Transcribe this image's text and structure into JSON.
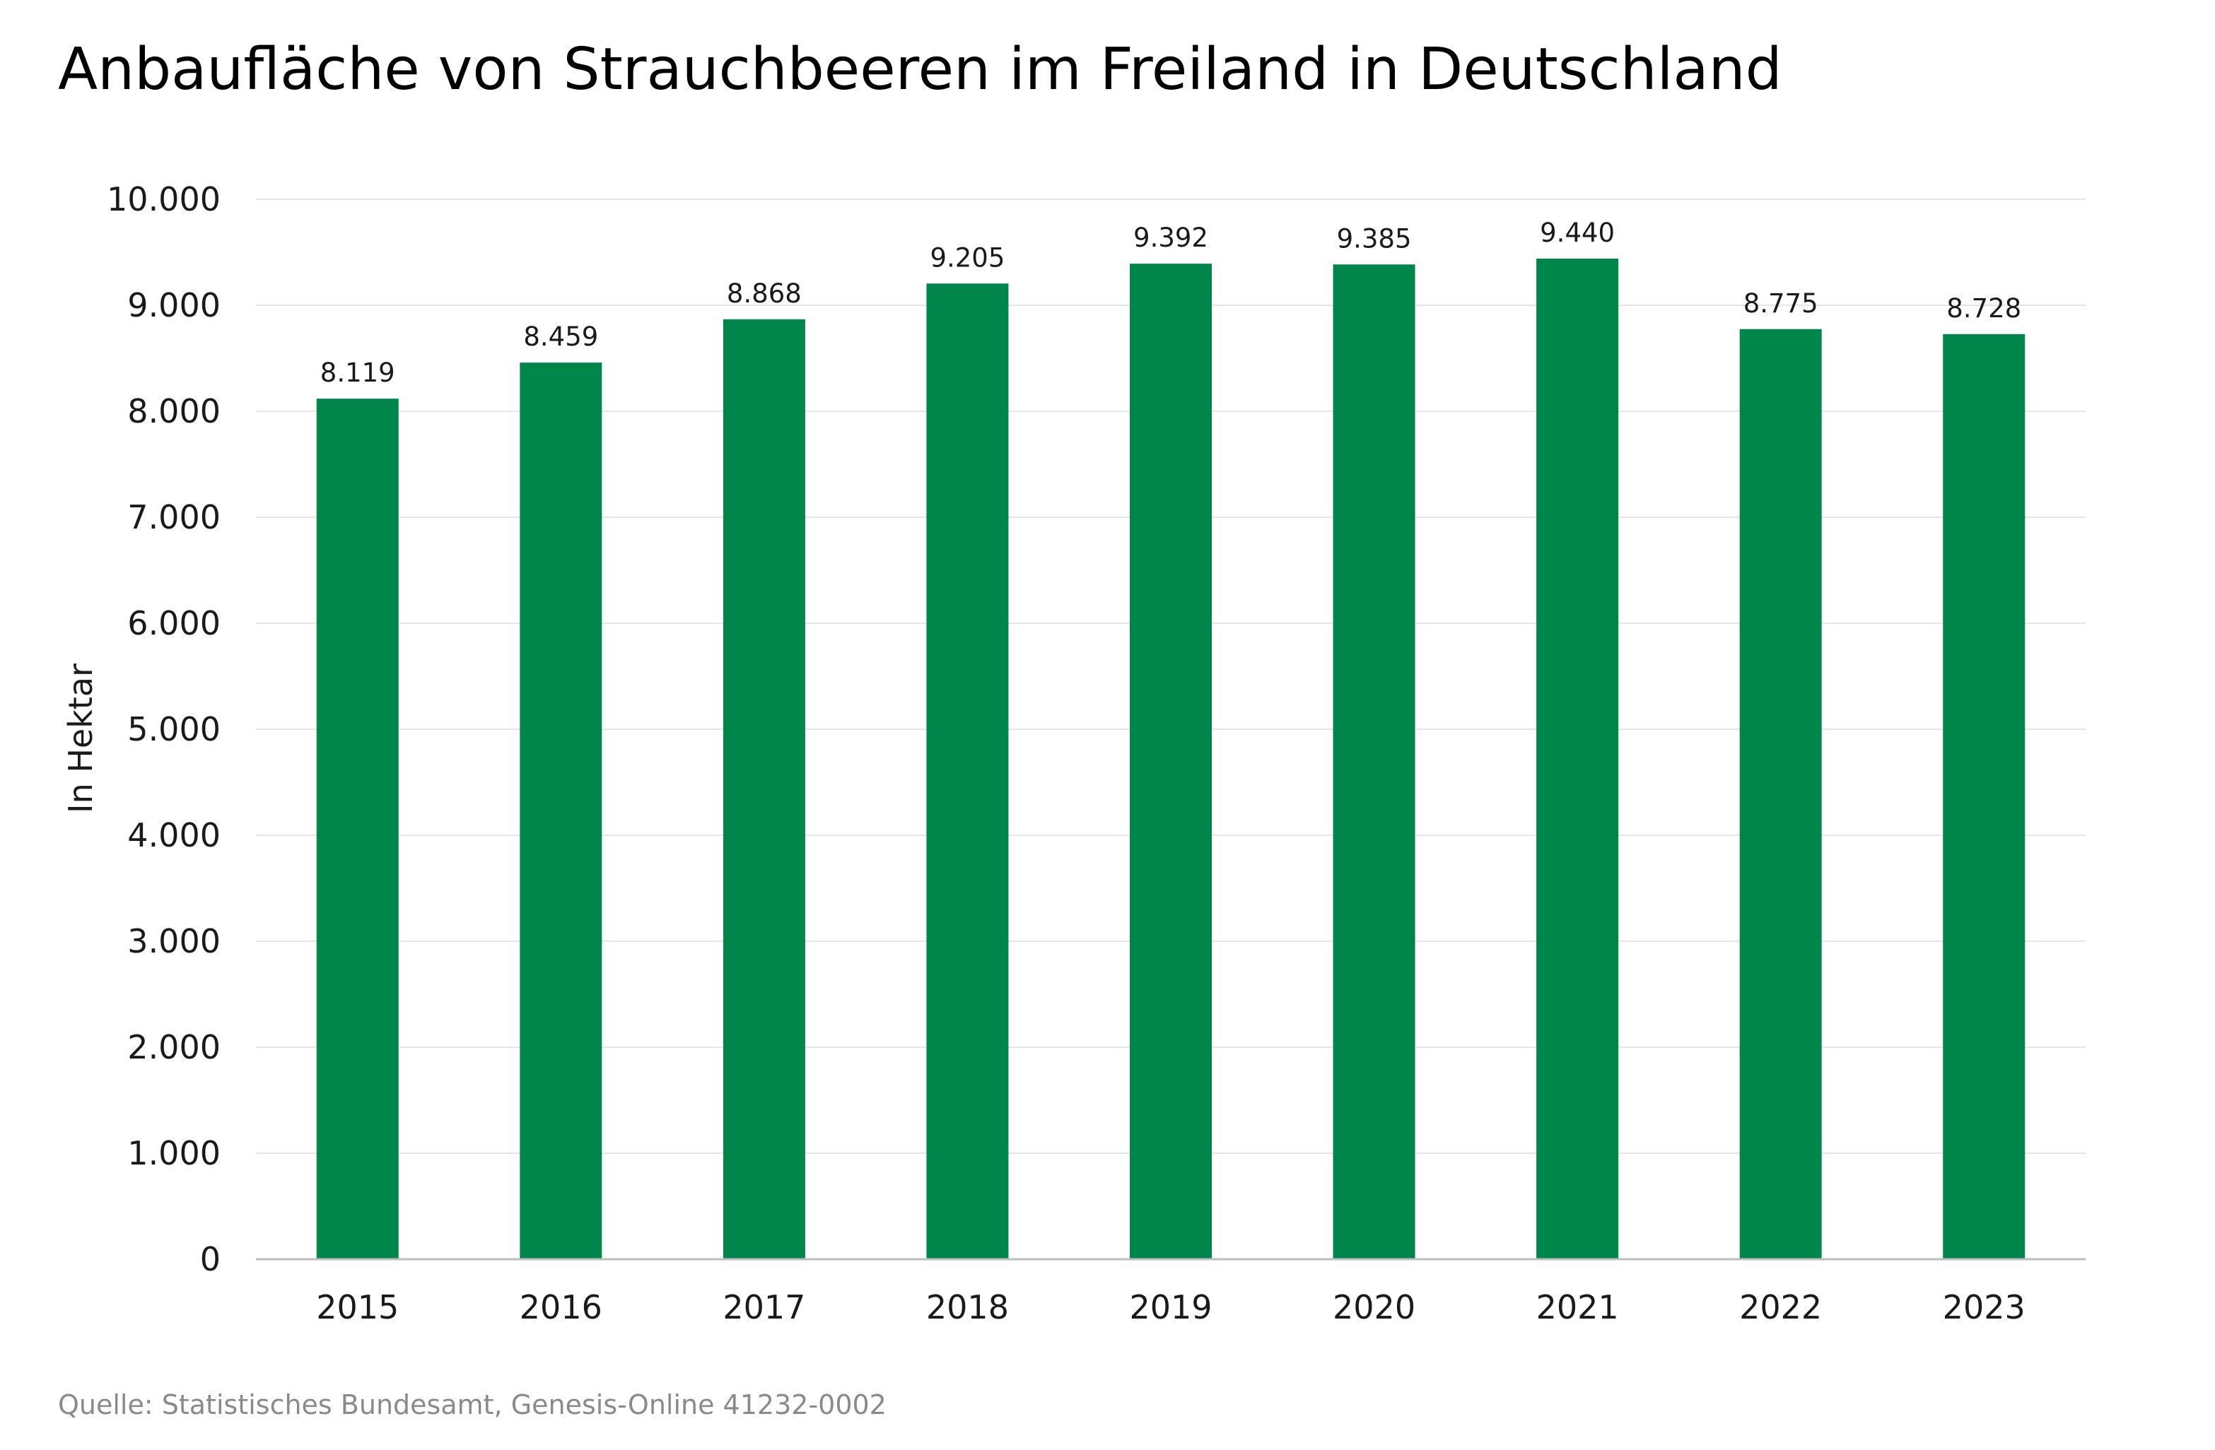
{
  "chart_data": {
    "type": "bar",
    "title": "Anbaufläche von Strauchbeeren im Freiland in Deutschland",
    "xlabel": "",
    "ylabel": "In Hektar",
    "categories": [
      "2015",
      "2016",
      "2017",
      "2018",
      "2019",
      "2020",
      "2021",
      "2022",
      "2023"
    ],
    "values": [
      8119,
      8459,
      8868,
      9205,
      9392,
      9385,
      9440,
      8775,
      8728
    ],
    "value_labels": [
      "8.119",
      "8.459",
      "8.868",
      "9.205",
      "9.392",
      "9.385",
      "9.440",
      "8.775",
      "8.728"
    ],
    "ylim": [
      0,
      10000
    ],
    "yticks": [
      0,
      1000,
      2000,
      3000,
      4000,
      5000,
      6000,
      7000,
      8000,
      9000,
      10000
    ],
    "ytick_labels": [
      "0",
      "1.000",
      "2.000",
      "3.000",
      "4.000",
      "5.000",
      "6.000",
      "7.000",
      "8.000",
      "9.000",
      "10.000"
    ],
    "grid": true,
    "legend": "none",
    "bar_color": "#00854a",
    "source": "Quelle: Statistisches Bundesamt, Genesis-Online 41232-0002"
  }
}
